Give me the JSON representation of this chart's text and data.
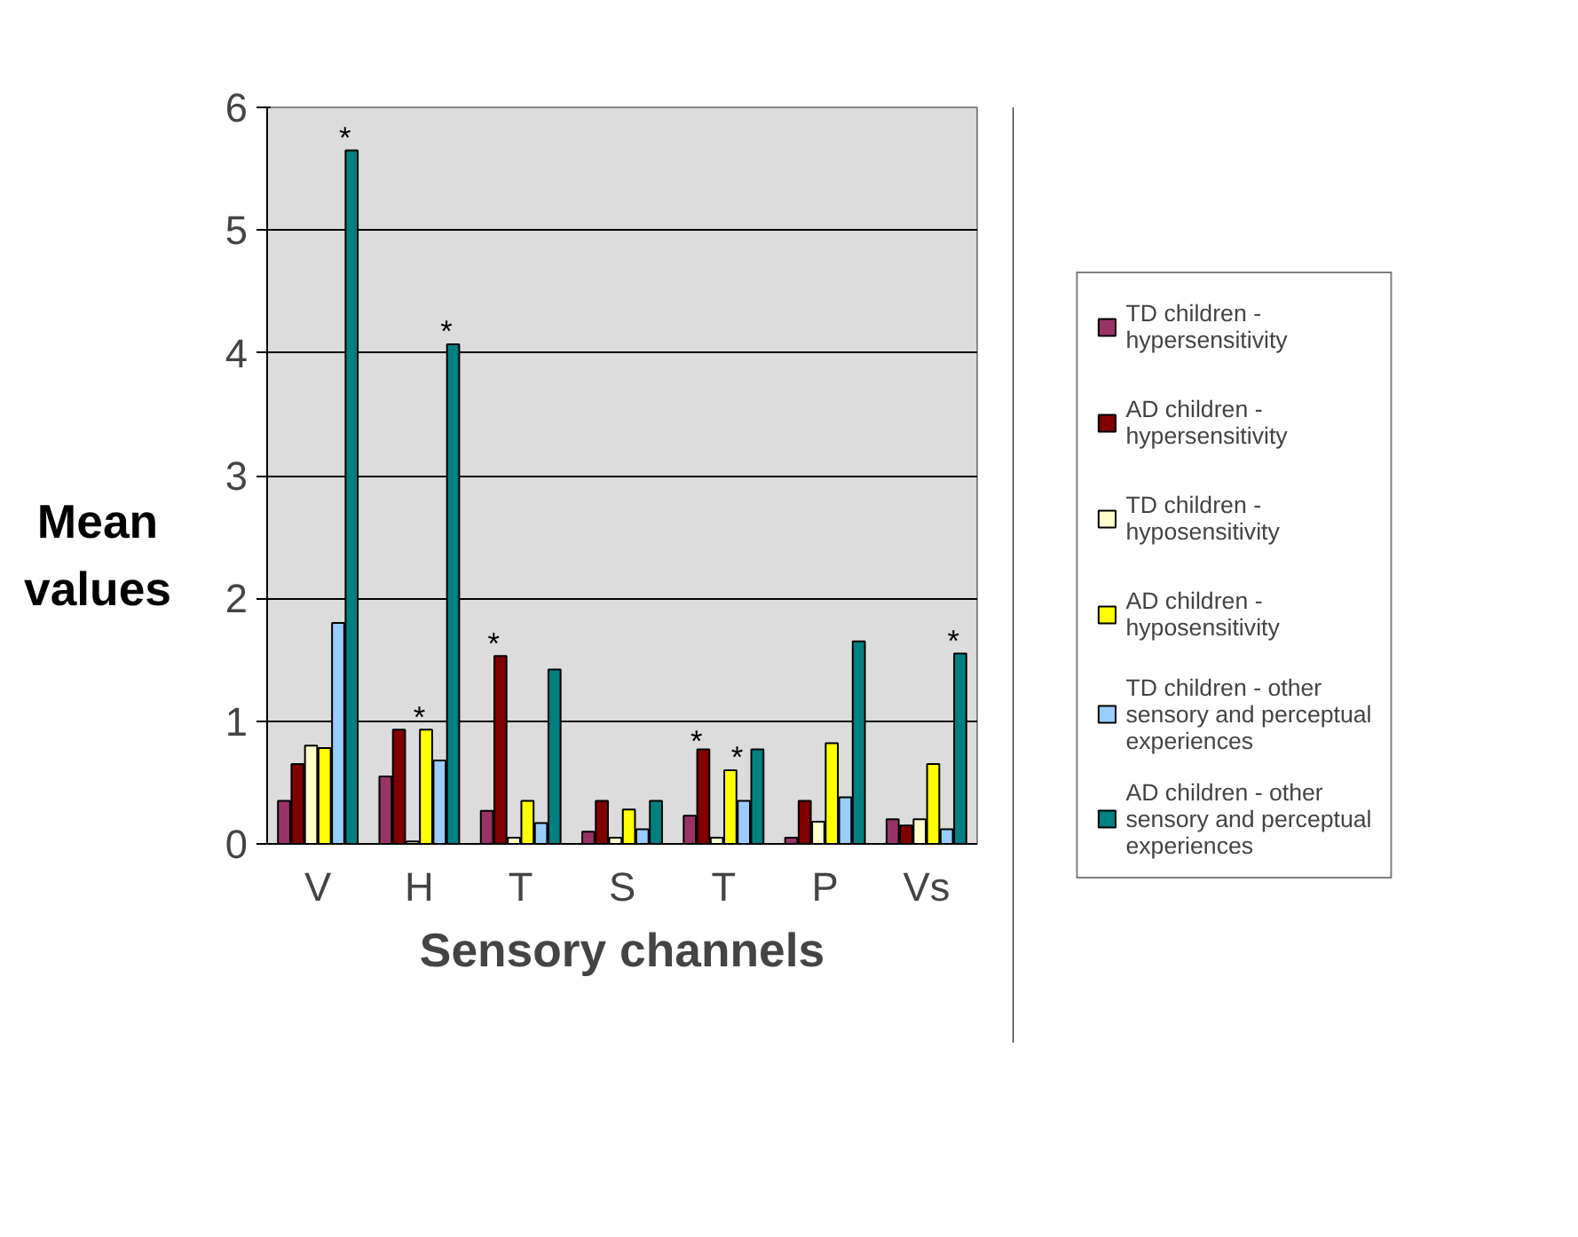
{
  "chart_data": {
    "type": "bar",
    "xlabel": "Sensory channels",
    "ylabel": "Mean values",
    "categories": [
      "V",
      "H",
      "T",
      "S",
      "T",
      "P",
      "Vs"
    ],
    "series": [
      {
        "name": "TD children - hypersensitivity",
        "color": "#993366",
        "values": [
          0.35,
          0.55,
          0.27,
          0.1,
          0.23,
          0.05,
          0.2
        ]
      },
      {
        "name": "AD children - hypersensitivity",
        "color": "#800000",
        "values": [
          0.65,
          0.93,
          1.53,
          0.35,
          0.77,
          0.35,
          0.15
        ]
      },
      {
        "name": "TD children - hyposensitivity",
        "color": "#ffffcc",
        "values": [
          0.8,
          0.02,
          0.05,
          0.05,
          0.05,
          0.18,
          0.2
        ]
      },
      {
        "name": "AD children - hyposensitivity",
        "color": "#ffff00",
        "values": [
          0.78,
          0.93,
          0.35,
          0.28,
          0.6,
          0.82,
          0.65
        ]
      },
      {
        "name": "TD children - other sensory and perceptual experiences",
        "color": "#99ccff",
        "values": [
          1.8,
          0.68,
          0.17,
          0.12,
          0.35,
          0.38,
          0.12
        ]
      },
      {
        "name": "AD children - other sensory and perceptual experiences",
        "color": "#008080",
        "values": [
          5.65,
          4.07,
          1.42,
          0.35,
          0.77,
          1.65,
          1.55
        ]
      }
    ],
    "ylim": [
      0,
      6
    ],
    "yticks": [
      0,
      1,
      2,
      3,
      4,
      5,
      6
    ],
    "grid": "y",
    "legend": "right",
    "annotations": [
      "*",
      "*",
      "*",
      "*",
      "*",
      "*",
      "*"
    ]
  }
}
